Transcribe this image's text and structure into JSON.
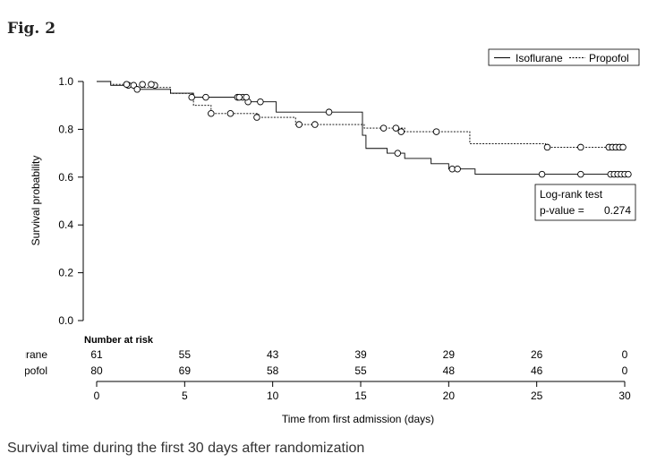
{
  "figure": {
    "label": "Fig. 2",
    "caption": "Survival time during the first 30 days after randomization"
  },
  "chart_data": {
    "type": "line",
    "subtype": "kaplan-meier",
    "xlabel": "Time from first admission (days)",
    "ylabel": "Survival probability",
    "xlim": [
      0,
      30
    ],
    "ylim": [
      0,
      1.0
    ],
    "x_ticks": [
      0,
      5,
      10,
      15,
      20,
      25,
      30
    ],
    "y_ticks": [
      0.0,
      0.2,
      0.4,
      0.6,
      0.8,
      1.0
    ],
    "y_tick_labels": [
      "0.0",
      "0.2",
      "0.4",
      "0.6",
      "0.8",
      "1.0"
    ],
    "grid": false,
    "legend_position": "top-right",
    "series": [
      {
        "name": "Isoflurane",
        "line_style": "solid",
        "steps": [
          [
            0,
            1.0
          ],
          [
            0.8,
            0.984
          ],
          [
            2.2,
            0.967
          ],
          [
            4.2,
            0.951
          ],
          [
            5.5,
            0.934
          ],
          [
            8.2,
            0.934
          ],
          [
            8.5,
            0.915
          ],
          [
            10.2,
            0.872
          ],
          [
            13.2,
            0.872
          ],
          [
            15.1,
            0.775
          ],
          [
            15.3,
            0.72
          ],
          [
            16.5,
            0.7
          ],
          [
            17.5,
            0.678
          ],
          [
            19.0,
            0.656
          ],
          [
            20.0,
            0.634
          ],
          [
            21.5,
            0.612
          ],
          [
            30,
            0.612
          ]
        ],
        "censored": [
          [
            1.8,
            0.984
          ],
          [
            2.1,
            0.984
          ],
          [
            2.3,
            0.967
          ],
          [
            3.3,
            0.984
          ],
          [
            8.0,
            0.934
          ],
          [
            8.3,
            0.934
          ],
          [
            8.6,
            0.915
          ],
          [
            13.2,
            0.872
          ],
          [
            17.1,
            0.7
          ],
          [
            20.2,
            0.634
          ],
          [
            20.5,
            0.634
          ],
          [
            25.3,
            0.612
          ],
          [
            27.5,
            0.612
          ],
          [
            29.2,
            0.612
          ],
          [
            29.4,
            0.612
          ],
          [
            29.6,
            0.612
          ],
          [
            29.8,
            0.612
          ],
          [
            30.0,
            0.612
          ],
          [
            30.2,
            0.612
          ]
        ]
      },
      {
        "name": "Propofol",
        "line_style": "dashed",
        "steps": [
          [
            0,
            1.0
          ],
          [
            0.8,
            0.988
          ],
          [
            2.2,
            0.975
          ],
          [
            4.2,
            0.95
          ],
          [
            5.5,
            0.9
          ],
          [
            6.5,
            0.866
          ],
          [
            9.2,
            0.85
          ],
          [
            11.3,
            0.82
          ],
          [
            15.1,
            0.82
          ],
          [
            15.2,
            0.805
          ],
          [
            17.5,
            0.79
          ],
          [
            21.2,
            0.74
          ],
          [
            25.5,
            0.725
          ],
          [
            30,
            0.725
          ]
        ],
        "censored": [
          [
            1.7,
            0.988
          ],
          [
            2.6,
            0.988
          ],
          [
            3.1,
            0.988
          ],
          [
            5.4,
            0.934
          ],
          [
            6.2,
            0.934
          ],
          [
            8.1,
            0.934
          ],
          [
            8.5,
            0.934
          ],
          [
            9.3,
            0.915
          ],
          [
            6.5,
            0.866
          ],
          [
            7.6,
            0.866
          ],
          [
            9.1,
            0.85
          ],
          [
            11.5,
            0.82
          ],
          [
            12.4,
            0.82
          ],
          [
            16.3,
            0.805
          ],
          [
            17.0,
            0.805
          ],
          [
            17.3,
            0.79
          ],
          [
            19.3,
            0.79
          ],
          [
            25.6,
            0.725
          ],
          [
            27.5,
            0.725
          ],
          [
            29.1,
            0.725
          ],
          [
            29.3,
            0.725
          ],
          [
            29.5,
            0.725
          ],
          [
            29.7,
            0.725
          ],
          [
            29.9,
            0.725
          ]
        ]
      }
    ],
    "annotation": {
      "line1": "Log-rank test",
      "line2_label": "p-value =",
      "line2_value": "0.274"
    },
    "risk_table": {
      "title": "Number at risk",
      "times": [
        0,
        5,
        10,
        15,
        20,
        25,
        30
      ],
      "rows": [
        {
          "group": "Isoflurane",
          "counts": [
            "61",
            "55",
            "43",
            "39",
            "29",
            "26",
            "0"
          ]
        },
        {
          "group": "Propofol",
          "counts": [
            "80",
            "69",
            "58",
            "55",
            "48",
            "46",
            "0"
          ]
        }
      ]
    }
  },
  "colors": {
    "axis": "#000000",
    "lines": "#000000",
    "panel_background": "#ffffff",
    "page_background": "#ffffff"
  }
}
